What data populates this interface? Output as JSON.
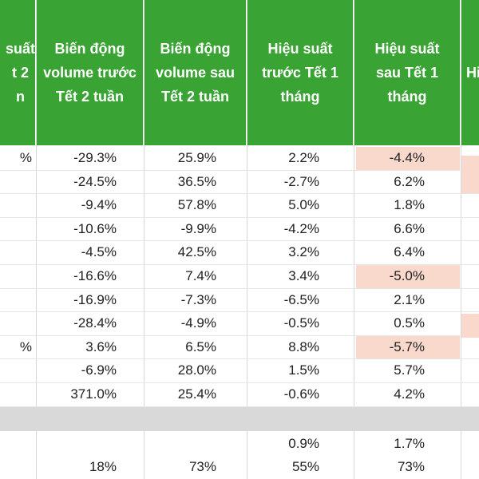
{
  "headers": [
    "suất\nt 2\nn",
    "Biến động\nvolume trước\nTết 2 tuần",
    "Biến động\nvolume sau\nTết 2 tuần",
    "Hiệu suất\ntrước Tết 1\ntháng",
    "Hiệu suất\nsau Tết 1\ntháng",
    "Hi"
  ],
  "rows": [
    {
      "c0": "%",
      "c1": "-29.3%",
      "c2": "25.9%",
      "c3": "2.2%",
      "c4": "-4.4%",
      "c4_highlight": true
    },
    {
      "c0": "",
      "c1": "-24.5%",
      "c2": "36.5%",
      "c3": "-2.7%",
      "c4": "6.2%",
      "c4_highlight": false
    },
    {
      "c0": "",
      "c1": "-9.4%",
      "c2": "57.8%",
      "c3": "5.0%",
      "c4": "1.8%",
      "c4_highlight": false
    },
    {
      "c0": "",
      "c1": "-10.6%",
      "c2": "-9.9%",
      "c3": "-4.2%",
      "c4": "6.6%",
      "c4_highlight": false
    },
    {
      "c0": "",
      "c1": "-4.5%",
      "c2": "42.5%",
      "c3": "3.2%",
      "c4": "6.4%",
      "c4_highlight": false
    },
    {
      "c0": "",
      "c1": "-16.6%",
      "c2": "7.4%",
      "c3": "3.4%",
      "c4": "-5.0%",
      "c4_highlight": true
    },
    {
      "c0": "",
      "c1": "-16.9%",
      "c2": "-7.3%",
      "c3": "-6.5%",
      "c4": "2.1%",
      "c4_highlight": false
    },
    {
      "c0": "",
      "c1": "-28.4%",
      "c2": "-4.9%",
      "c3": "-0.5%",
      "c4": "0.5%",
      "c4_highlight": false
    },
    {
      "c0": "%",
      "c1": "3.6%",
      "c2": "6.5%",
      "c3": "8.8%",
      "c4": "-5.7%",
      "c4_highlight": true
    },
    {
      "c0": "",
      "c1": "-6.9%",
      "c2": "28.0%",
      "c3": "1.5%",
      "c4": "5.7%",
      "c4_highlight": false
    },
    {
      "c0": "",
      "c1": "371.0%",
      "c2": "25.4%",
      "c3": "-0.6%",
      "c4": "4.2%",
      "c4_highlight": false
    }
  ],
  "summary_rows": [
    {
      "c1": "",
      "c2": "",
      "c3": "0.9%",
      "c4": "1.7%"
    },
    {
      "c1": "18%",
      "c2": "73%",
      "c3": "55%",
      "c4": "73%"
    }
  ],
  "colors": {
    "header_bg": "#39a433",
    "header_text": "#ffffff",
    "highlight": "#f8d9cc",
    "separator": "#d9d9d9"
  }
}
